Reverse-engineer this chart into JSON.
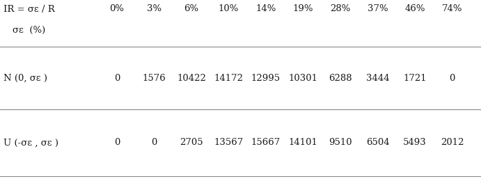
{
  "col_headers": [
    "0%",
    "3%",
    "6%",
    "10%",
    "14%",
    "19%",
    "28%",
    "37%",
    "46%",
    "74%"
  ],
  "row1_label_line1": "IR = σε / R",
  "row1_label_line2": "σε  (%)",
  "row2_label": "N (0, σε )",
  "row3_label": "U (-σε , σε )",
  "row2_data": [
    "0",
    "1576",
    "10422",
    "14172",
    "12995",
    "10301",
    "6288",
    "3444",
    "1721",
    "0"
  ],
  "row3_data": [
    "0",
    "0",
    "2705",
    "13567",
    "15667",
    "14101",
    "9510",
    "6504",
    "5493",
    "2012"
  ],
  "bg_color": "#ffffff",
  "text_color": "#1a1a1a",
  "line_color": "#888888",
  "fontsize": 9.5
}
